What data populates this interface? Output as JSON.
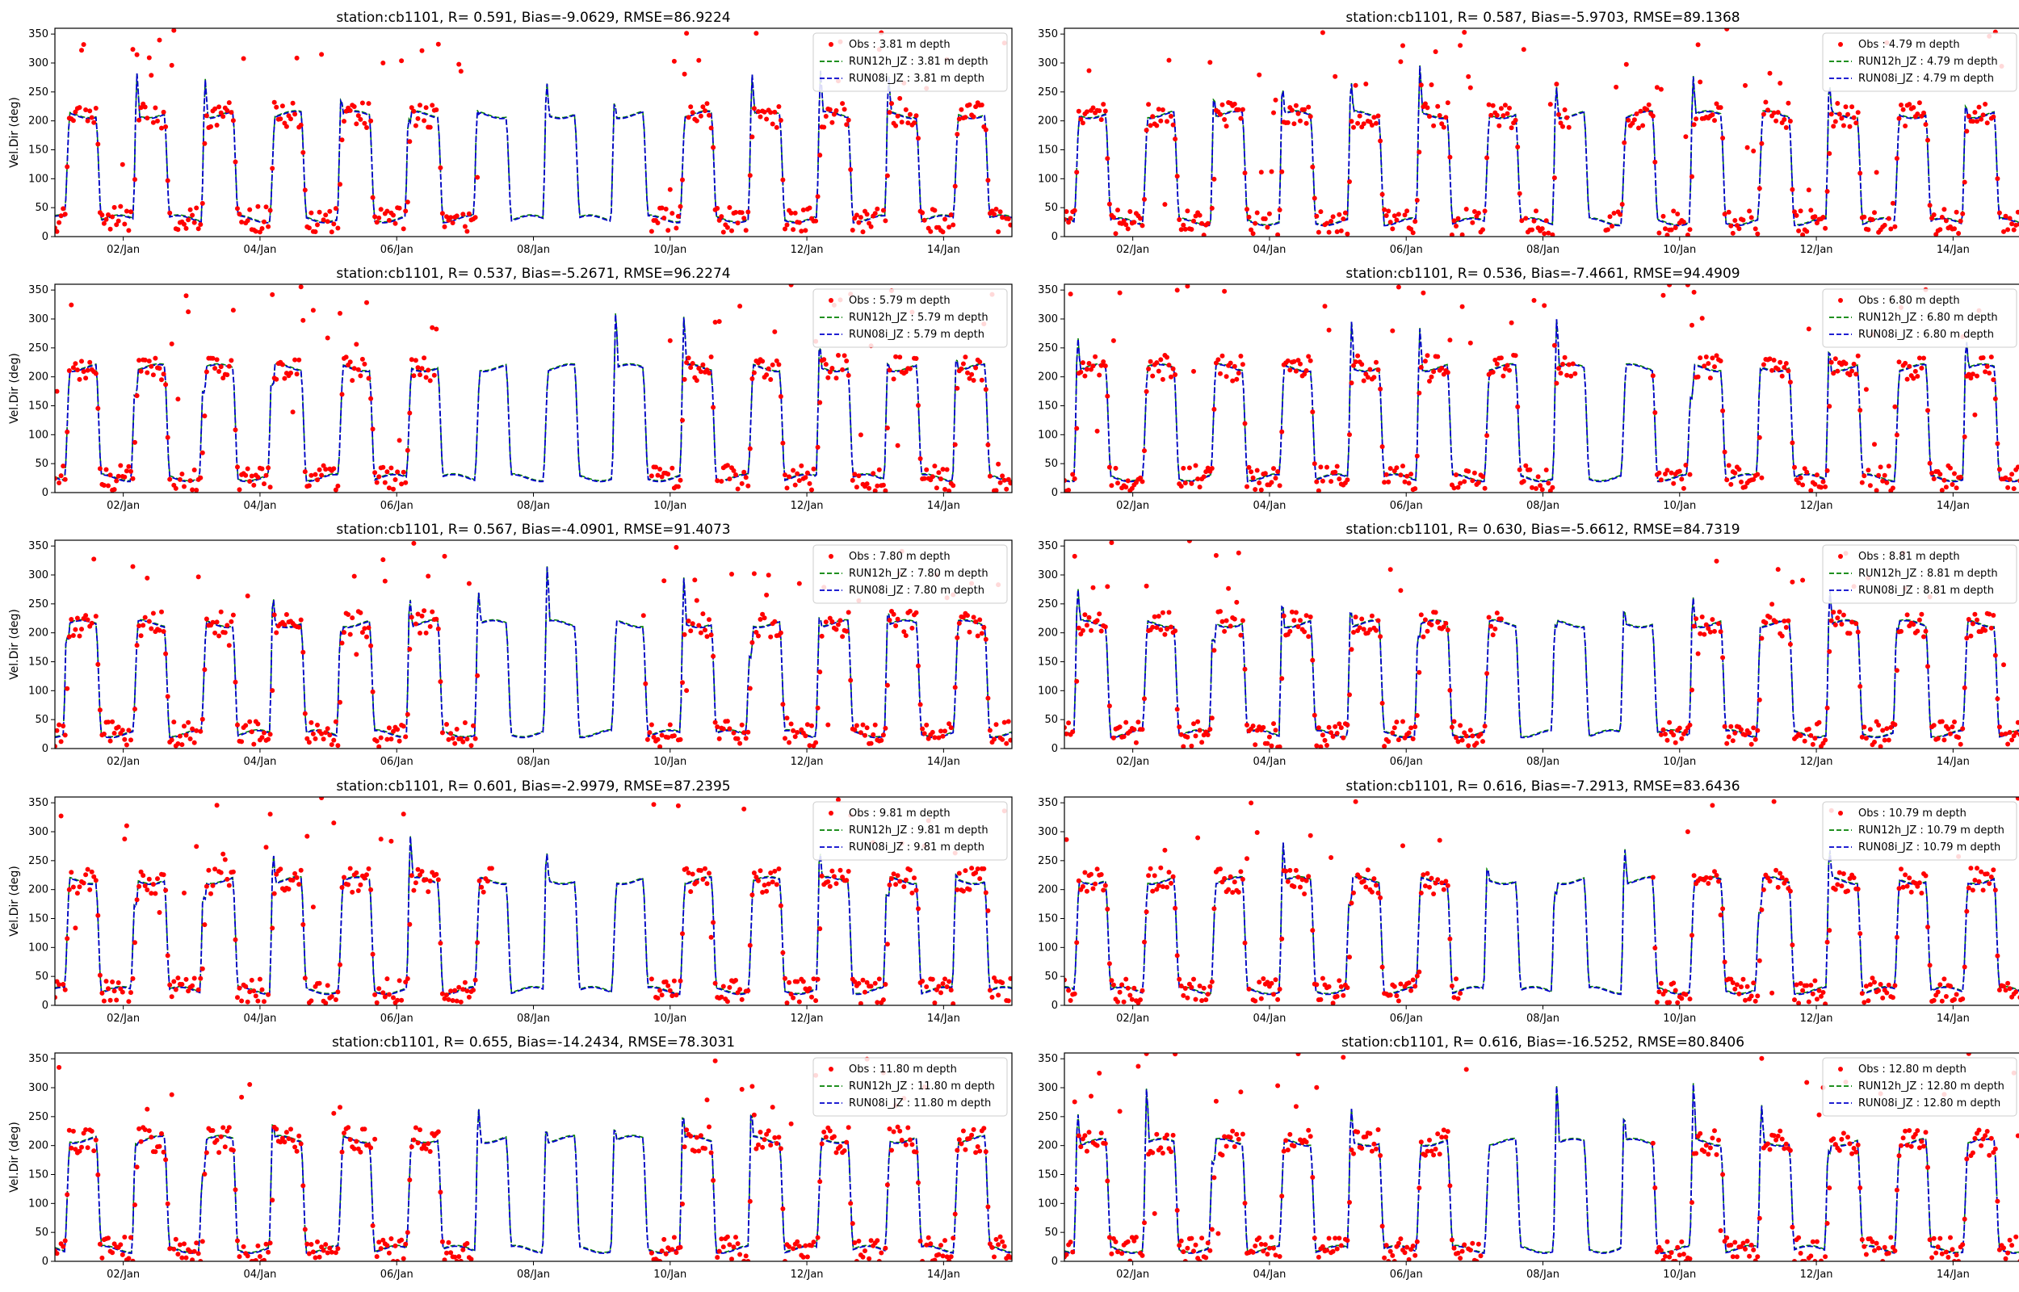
{
  "colors": {
    "obs": "#ff0000",
    "run12h": "#008000",
    "run08i": "#0000cc"
  },
  "chart_data": [
    {
      "type": "line",
      "title": "station:cb1101, R= 0.591, Bias=-9.0629, RMSE=86.9224",
      "ylabel": "Vel.Dir (deg)",
      "xticks": [
        "02/Jan",
        "04/Jan",
        "06/Jan",
        "08/Jan",
        "10/Jan",
        "12/Jan",
        "14/Jan"
      ],
      "yticks": [
        0,
        50,
        100,
        150,
        200,
        250,
        300,
        350
      ],
      "xlim": [
        1.0,
        15.0
      ],
      "ylim": [
        0,
        360
      ],
      "legend_position": "upper right",
      "series": [
        {
          "name": "Obs : 3.81 m depth",
          "style": "scatter"
        },
        {
          "name": "RUN12h_JZ : 3.81 m depth",
          "style": "dashed"
        },
        {
          "name": "RUN08i_JZ : 3.81 m depth",
          "style": "dashed"
        }
      ],
      "obs_gaps": [
        [
          7.2,
          9.7
        ]
      ],
      "day_level": 210,
      "night_level": 30
    },
    {
      "type": "line",
      "title": "station:cb1101, R= 0.587, Bias=-5.9703, RMSE=89.1368",
      "ylabel": "",
      "xticks": [
        "02/Jan",
        "04/Jan",
        "06/Jan",
        "08/Jan",
        "10/Jan",
        "12/Jan",
        "14/Jan"
      ],
      "yticks": [
        0,
        50,
        100,
        150,
        200,
        250,
        300,
        350
      ],
      "xlim": [
        1.0,
        15.0
      ],
      "ylim": [
        0,
        360
      ],
      "legend_position": "upper right",
      "series": [
        {
          "name": "Obs : 4.79 m depth",
          "style": "scatter"
        },
        {
          "name": "RUN12h_JZ : 4.79 m depth",
          "style": "dashed"
        },
        {
          "name": "RUN08i_JZ : 4.79 m depth",
          "style": "dashed"
        }
      ],
      "obs_gaps": [
        [
          8.4,
          8.9
        ]
      ],
      "day_level": 210,
      "night_level": 25
    },
    {
      "type": "line",
      "title": "station:cb1101, R= 0.537, Bias=-5.2671, RMSE=96.2274",
      "ylabel": "Vel.Dir (deg)",
      "xticks": [
        "02/Jan",
        "04/Jan",
        "06/Jan",
        "08/Jan",
        "10/Jan",
        "12/Jan",
        "14/Jan"
      ],
      "yticks": [
        0,
        50,
        100,
        150,
        200,
        250,
        300,
        350
      ],
      "xlim": [
        1.0,
        15.0
      ],
      "ylim": [
        0,
        360
      ],
      "legend_position": "upper right",
      "series": [
        {
          "name": "Obs : 5.79 m depth",
          "style": "scatter"
        },
        {
          "name": "RUN12h_JZ : 5.79 m depth",
          "style": "dashed"
        },
        {
          "name": "RUN08i_JZ : 5.79 m depth",
          "style": "dashed"
        }
      ],
      "obs_gaps": [
        [
          6.6,
          9.7
        ]
      ],
      "day_level": 215,
      "night_level": 25
    },
    {
      "type": "line",
      "title": "station:cb1101, R= 0.536, Bias=-7.4661, RMSE=94.4909",
      "ylabel": "",
      "xticks": [
        "02/Jan",
        "04/Jan",
        "06/Jan",
        "08/Jan",
        "10/Jan",
        "12/Jan",
        "14/Jan"
      ],
      "yticks": [
        0,
        50,
        100,
        150,
        200,
        250,
        300,
        350
      ],
      "xlim": [
        1.0,
        15.0
      ],
      "ylim": [
        0,
        360
      ],
      "legend_position": "upper right",
      "series": [
        {
          "name": "Obs : 6.80 m depth",
          "style": "scatter"
        },
        {
          "name": "RUN12h_JZ : 6.80 m depth",
          "style": "dashed"
        },
        {
          "name": "RUN08i_JZ : 6.80 m depth",
          "style": "dashed"
        }
      ],
      "obs_gaps": [
        [
          8.5,
          9.6
        ]
      ],
      "day_level": 215,
      "night_level": 25
    },
    {
      "type": "line",
      "title": "station:cb1101, R= 0.567, Bias=-4.0901, RMSE=91.4073",
      "ylabel": "Vel.Dir (deg)",
      "xticks": [
        "02/Jan",
        "04/Jan",
        "06/Jan",
        "08/Jan",
        "10/Jan",
        "12/Jan",
        "14/Jan"
      ],
      "yticks": [
        0,
        50,
        100,
        150,
        200,
        250,
        300,
        350
      ],
      "xlim": [
        1.0,
        15.0
      ],
      "ylim": [
        0,
        360
      ],
      "legend_position": "upper right",
      "series": [
        {
          "name": "Obs : 7.80 m depth",
          "style": "scatter"
        },
        {
          "name": "RUN12h_JZ : 7.80 m depth",
          "style": "dashed"
        },
        {
          "name": "RUN08i_JZ : 7.80 m depth",
          "style": "dashed"
        }
      ],
      "obs_gaps": [
        [
          7.2,
          9.6
        ]
      ],
      "day_level": 215,
      "night_level": 25
    },
    {
      "type": "line",
      "title": "station:cb1101, R= 0.630, Bias=-5.6612, RMSE=84.7319",
      "ylabel": "",
      "xticks": [
        "02/Jan",
        "04/Jan",
        "06/Jan",
        "08/Jan",
        "10/Jan",
        "12/Jan",
        "14/Jan"
      ],
      "yticks": [
        0,
        50,
        100,
        150,
        200,
        250,
        300,
        350
      ],
      "xlim": [
        1.0,
        15.0
      ],
      "ylim": [
        0,
        360
      ],
      "legend_position": "upper right",
      "series": [
        {
          "name": "Obs : 8.81 m depth",
          "style": "scatter"
        },
        {
          "name": "RUN12h_JZ : 8.81 m depth",
          "style": "dashed"
        },
        {
          "name": "RUN08i_JZ : 8.81 m depth",
          "style": "dashed"
        }
      ],
      "obs_gaps": [
        [
          7.4,
          9.7
        ]
      ],
      "day_level": 215,
      "night_level": 25
    },
    {
      "type": "line",
      "title": "station:cb1101, R= 0.601, Bias=-2.9979, RMSE=87.2395",
      "ylabel": "Vel.Dir (deg)",
      "xticks": [
        "02/Jan",
        "04/Jan",
        "06/Jan",
        "08/Jan",
        "10/Jan",
        "12/Jan",
        "14/Jan"
      ],
      "yticks": [
        0,
        50,
        100,
        150,
        200,
        250,
        300,
        350
      ],
      "xlim": [
        1.0,
        15.0
      ],
      "ylim": [
        0,
        360
      ],
      "legend_position": "upper right",
      "series": [
        {
          "name": "Obs : 9.81 m depth",
          "style": "scatter"
        },
        {
          "name": "RUN12h_JZ : 9.81 m depth",
          "style": "dashed"
        },
        {
          "name": "RUN08i_JZ : 9.81 m depth",
          "style": "dashed"
        }
      ],
      "obs_gaps": [
        [
          7.4,
          9.7
        ]
      ],
      "day_level": 215,
      "night_level": 25
    },
    {
      "type": "line",
      "title": "station:cb1101, R= 0.616, Bias=-7.2913, RMSE=83.6436",
      "ylabel": "",
      "xticks": [
        "02/Jan",
        "04/Jan",
        "06/Jan",
        "08/Jan",
        "10/Jan",
        "12/Jan",
        "14/Jan"
      ],
      "yticks": [
        0,
        50,
        100,
        150,
        200,
        250,
        300,
        350
      ],
      "xlim": [
        1.0,
        15.0
      ],
      "ylim": [
        0,
        360
      ],
      "legend_position": "upper right",
      "series": [
        {
          "name": "Obs : 10.79 m depth",
          "style": "scatter"
        },
        {
          "name": "RUN12h_JZ : 10.79 m depth",
          "style": "dashed"
        },
        {
          "name": "RUN08i_JZ : 10.79 m depth",
          "style": "dashed"
        }
      ],
      "obs_gaps": [
        [
          6.8,
          9.6
        ]
      ],
      "day_level": 215,
      "night_level": 25
    },
    {
      "type": "line",
      "title": "station:cb1101, R= 0.655, Bias=-14.2434, RMSE=78.3031",
      "ylabel": "Vel.Dir (deg)",
      "xticks": [
        "02/Jan",
        "04/Jan",
        "06/Jan",
        "08/Jan",
        "10/Jan",
        "12/Jan",
        "14/Jan"
      ],
      "yticks": [
        0,
        50,
        100,
        150,
        200,
        250,
        300,
        350
      ],
      "xlim": [
        1.0,
        15.0
      ],
      "ylim": [
        0,
        360
      ],
      "legend_position": "upper right",
      "series": [
        {
          "name": "Obs : 11.80 m depth",
          "style": "scatter"
        },
        {
          "name": "RUN12h_JZ : 11.80 m depth",
          "style": "dashed"
        },
        {
          "name": "RUN08i_JZ : 11.80 m depth",
          "style": "dashed"
        }
      ],
      "obs_gaps": [
        [
          7.1,
          9.7
        ]
      ],
      "day_level": 210,
      "night_level": 20
    },
    {
      "type": "line",
      "title": "station:cb1101, R= 0.616, Bias=-16.5252, RMSE=80.8406",
      "ylabel": "",
      "xticks": [
        "02/Jan",
        "04/Jan",
        "06/Jan",
        "08/Jan",
        "10/Jan",
        "12/Jan",
        "14/Jan"
      ],
      "yticks": [
        0,
        50,
        100,
        150,
        200,
        250,
        300,
        350
      ],
      "xlim": [
        1.0,
        15.0
      ],
      "ylim": [
        0,
        360
      ],
      "legend_position": "upper right",
      "series": [
        {
          "name": "Obs : 12.80 m depth",
          "style": "scatter"
        },
        {
          "name": "RUN12h_JZ : 12.80 m depth",
          "style": "dashed"
        },
        {
          "name": "RUN08i_JZ : 12.80 m depth",
          "style": "dashed"
        }
      ],
      "obs_gaps": [
        [
          7.1,
          9.6
        ]
      ],
      "day_level": 205,
      "night_level": 20
    }
  ]
}
